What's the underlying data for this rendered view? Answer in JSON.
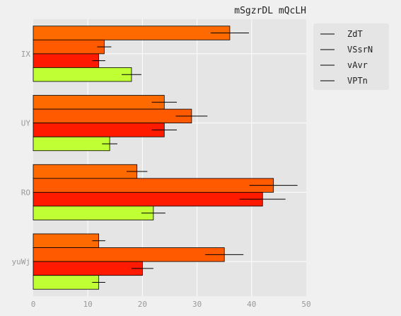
{
  "chart_data": {
    "type": "bar",
    "orientation": "horizontal",
    "title": "mSgzrDL mQcLH",
    "xlabel": "",
    "ylabel": "",
    "categories": [
      "IX",
      "UY",
      "RO",
      "yuWj"
    ],
    "xlim": [
      0,
      50
    ],
    "xticks": [
      0,
      10,
      20,
      30,
      40,
      50
    ],
    "grid": true,
    "legend_position": "top-right outside",
    "series": [
      {
        "name": "ZdT",
        "color": "#ff6a00",
        "values": [
          36,
          24,
          19,
          12
        ],
        "errors": [
          3.5,
          2.3,
          1.9,
          1.2
        ]
      },
      {
        "name": "VSsrN",
        "color": "#ff5a00",
        "values": [
          13,
          29,
          44,
          35
        ],
        "errors": [
          1.3,
          2.9,
          4.4,
          3.5
        ]
      },
      {
        "name": "vAvr",
        "color": "#ff1a00",
        "values": [
          12,
          24,
          42,
          20
        ],
        "errors": [
          1.2,
          2.3,
          4.2,
          2.0
        ]
      },
      {
        "name": "VPTn",
        "color": "#c0ff33",
        "values": [
          18,
          14,
          22,
          12
        ],
        "errors": [
          1.8,
          1.4,
          2.2,
          1.2
        ]
      }
    ]
  }
}
